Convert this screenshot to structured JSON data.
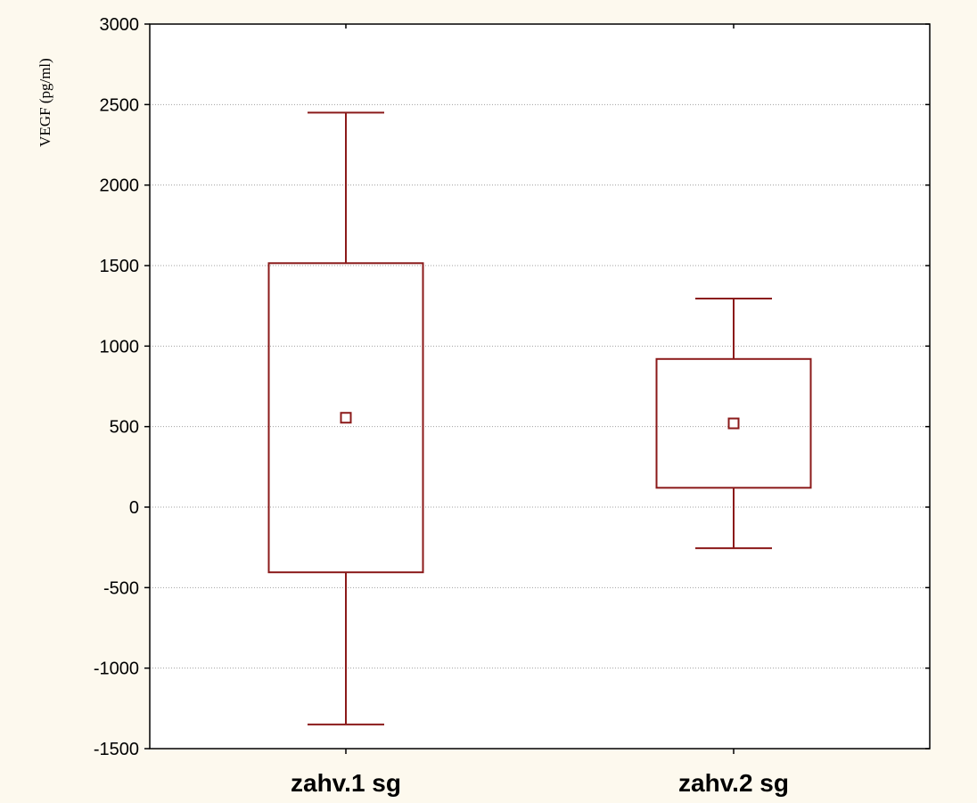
{
  "chart_data": {
    "type": "box",
    "title": "",
    "xlabel": "",
    "ylabel": "VEGF (pg/ml)",
    "ylim": [
      -1500,
      3000
    ],
    "yticks": [
      -1500,
      -1000,
      -500,
      0,
      500,
      1000,
      1500,
      2000,
      2500,
      3000
    ],
    "grid": true,
    "legend": "none",
    "categories": [
      "zahv.1 sg",
      "zahv.2 sg"
    ],
    "boxes": [
      {
        "category": "zahv.1 sg",
        "whisker_low": -1350,
        "box_low": -405,
        "center": 555,
        "box_high": 1515,
        "whisker_high": 2450
      },
      {
        "category": "zahv.2 sg",
        "whisker_low": -255,
        "box_low": 120,
        "center": 520,
        "box_high": 920,
        "whisker_high": 1295
      }
    ],
    "colors": {
      "box": "#8b1a1a",
      "background": "#fdf9ee",
      "plot_background": "#ffffff",
      "grid": "#a0a0a0",
      "axis": "#000000"
    }
  }
}
